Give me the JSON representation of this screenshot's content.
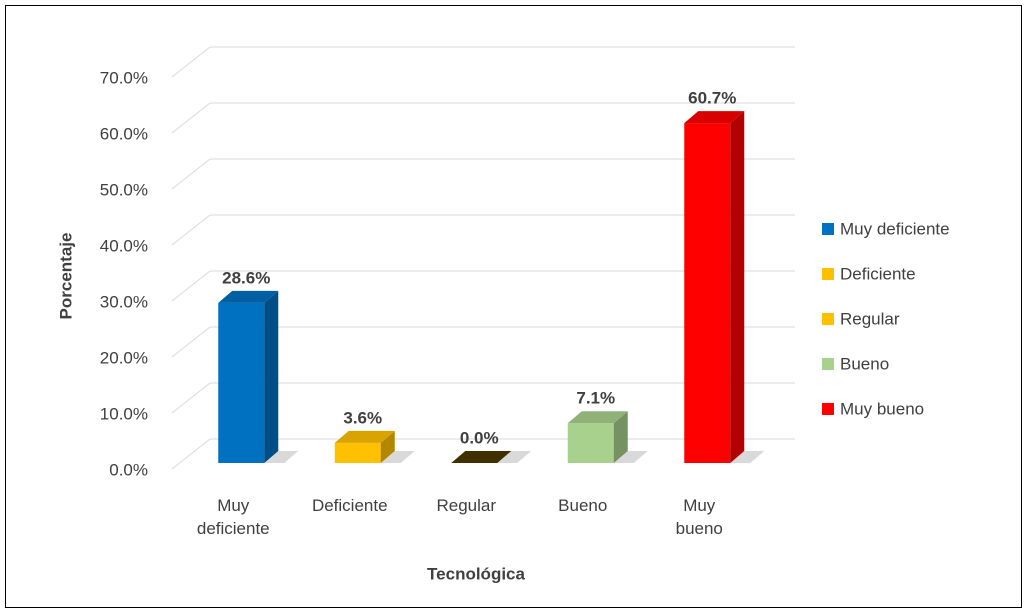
{
  "chart_data": {
    "type": "bar3d",
    "categories": [
      "Muy deficiente",
      "Deficiente",
      "Regular",
      "Bueno",
      "Muy bueno"
    ],
    "values": [
      28.6,
      3.6,
      0.0,
      7.1,
      60.7
    ],
    "value_labels": [
      "28.6%",
      "3.6%",
      "0.0%",
      "7.1%",
      "60.7%"
    ],
    "colors": [
      "#0070c0",
      "#ffc000",
      "#ffc000",
      "#a9d18e",
      "#ff0000"
    ],
    "ylabel": "Porcentaje",
    "xlabel": "Tecnológica",
    "ylim": [
      0,
      70
    ],
    "yticks": [
      {
        "value": 0,
        "label": "0.0%"
      },
      {
        "value": 10,
        "label": "10.0%"
      },
      {
        "value": 20,
        "label": "20.0%"
      },
      {
        "value": 30,
        "label": "30.0%"
      },
      {
        "value": 40,
        "label": "40.0%"
      },
      {
        "value": 50,
        "label": "50.0%"
      },
      {
        "value": 60,
        "label": "60.0%"
      },
      {
        "value": 70,
        "label": "70.0%"
      }
    ],
    "grid": true,
    "legend": "right"
  }
}
